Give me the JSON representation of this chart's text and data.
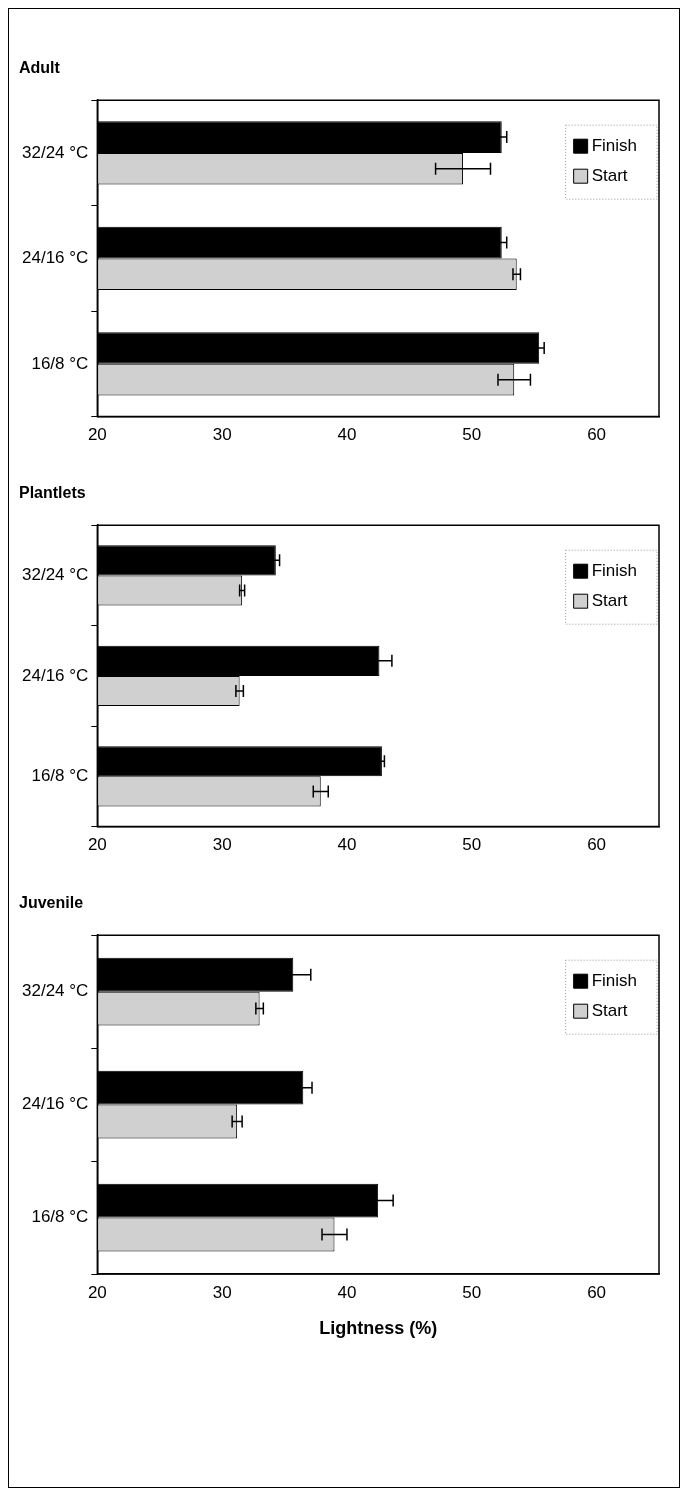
{
  "chart_data": [
    {
      "type": "bar",
      "orientation": "horizontal",
      "title": "Adult",
      "categories": [
        "32/24 °C",
        "24/16 °C",
        "16/8 °C"
      ],
      "series": [
        {
          "name": "Finish",
          "color": "#000000",
          "values": [
            52.4,
            52.4,
            55.4
          ],
          "errors": [
            0.4,
            0.4,
            0.4
          ]
        },
        {
          "name": "Start",
          "color": "#d0d0d0",
          "values": [
            49.3,
            53.6,
            53.4
          ],
          "errors": [
            2.2,
            0.3,
            1.3
          ]
        }
      ],
      "xlim": [
        20,
        65
      ],
      "xticks": [
        20,
        30,
        40,
        50,
        60
      ],
      "grid": false,
      "legend": "top right"
    },
    {
      "type": "bar",
      "orientation": "horizontal",
      "title": "Plantlets",
      "categories": [
        "32/24 °C",
        "24/16 °C",
        "16/8 °C"
      ],
      "series": [
        {
          "name": "Finish",
          "color": "#000000",
          "values": [
            34.3,
            42.6,
            42.8
          ],
          "errors": [
            0.3,
            1.0,
            0.2
          ]
        },
        {
          "name": "Start",
          "color": "#d0d0d0",
          "values": [
            31.6,
            31.4,
            37.9
          ],
          "errors": [
            0.2,
            0.3,
            0.6
          ]
        }
      ],
      "xlim": [
        20,
        65
      ],
      "xticks": [
        20,
        30,
        40,
        50,
        60
      ],
      "grid": false,
      "legend": "top right"
    },
    {
      "type": "bar",
      "orientation": "horizontal",
      "title": "Juvenile",
      "xlabel": "Lightness (%)",
      "categories": [
        "32/24 °C",
        "24/16 °C",
        "16/8 °C"
      ],
      "series": [
        {
          "name": "Finish",
          "color": "#000000",
          "values": [
            35.7,
            36.5,
            42.5
          ],
          "errors": [
            1.4,
            0.7,
            1.2
          ]
        },
        {
          "name": "Start",
          "color": "#d0d0d0",
          "values": [
            33.0,
            31.2,
            39.0
          ],
          "errors": [
            0.3,
            0.4,
            1.0
          ]
        }
      ],
      "xlim": [
        20,
        65
      ],
      "xticks": [
        20,
        30,
        40,
        50,
        60
      ],
      "grid": false,
      "legend": "top right"
    }
  ]
}
